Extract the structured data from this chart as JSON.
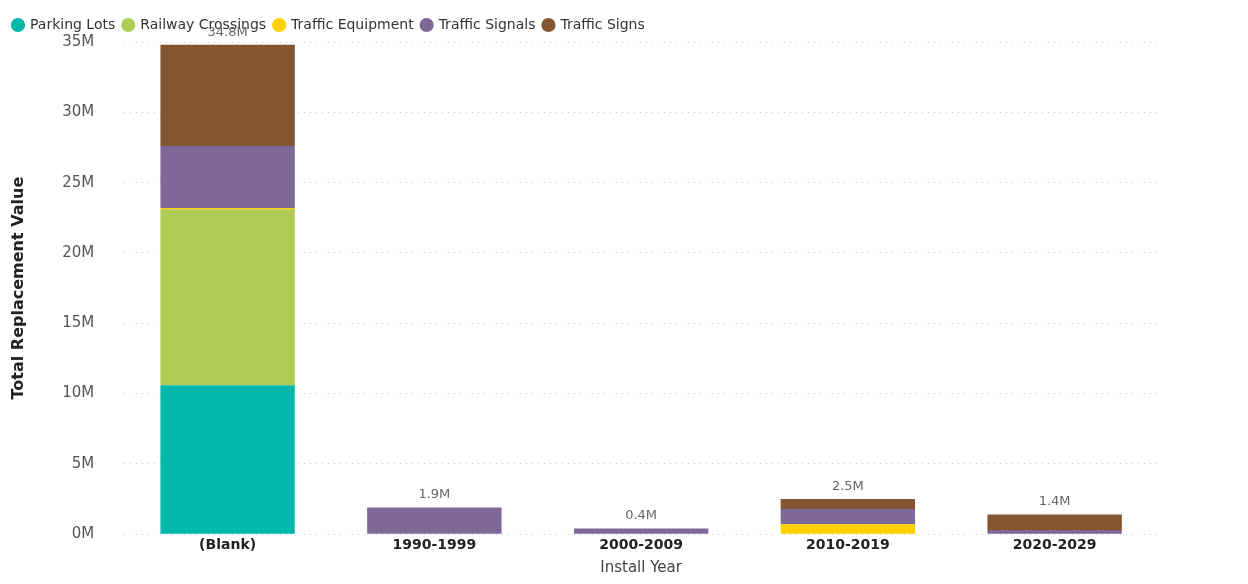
{
  "chart_data": {
    "type": "bar",
    "stacked": true,
    "xlabel": "Install Year",
    "ylabel": "Total Replacement Value",
    "categories": [
      "(Blank)",
      "1990-1999",
      "2000-2009",
      "2010-2019",
      "2020-2029"
    ],
    "series": [
      {
        "name": "Parking Lots",
        "color": "#01b8aa",
        "values": [
          10.6,
          null,
          null,
          null,
          null
        ]
      },
      {
        "name": "Railway Crossings",
        "color": "#b1cc56",
        "values": [
          12.5,
          null,
          null,
          null,
          null
        ]
      },
      {
        "name": "Traffic Equipment",
        "color": "#fdd000",
        "values": [
          0.1,
          null,
          null,
          0.7,
          null
        ]
      },
      {
        "name": "Traffic Signals",
        "color": "#7e6898",
        "values": [
          4.4,
          1.9,
          0.4,
          1.1,
          0.3
        ]
      },
      {
        "name": "Traffic Signs",
        "color": "#835530",
        "values": [
          7.2,
          null,
          null,
          0.7,
          1.1
        ]
      }
    ],
    "totals": [
      "34.8M",
      "1.9M",
      "0.4M",
      "2.5M",
      "1.4M"
    ],
    "ylim": [
      0,
      35
    ],
    "yticks": [
      {
        "value": 0,
        "label": "0M"
      },
      {
        "value": 5,
        "label": "5M"
      },
      {
        "value": 10,
        "label": "10M"
      },
      {
        "value": 15,
        "label": "15M"
      },
      {
        "value": 20,
        "label": "20M"
      },
      {
        "value": 25,
        "label": "25M"
      },
      {
        "value": 30,
        "label": "30M"
      },
      {
        "value": 35,
        "label": "35M"
      }
    ],
    "grid": "y",
    "legend": "top left"
  }
}
